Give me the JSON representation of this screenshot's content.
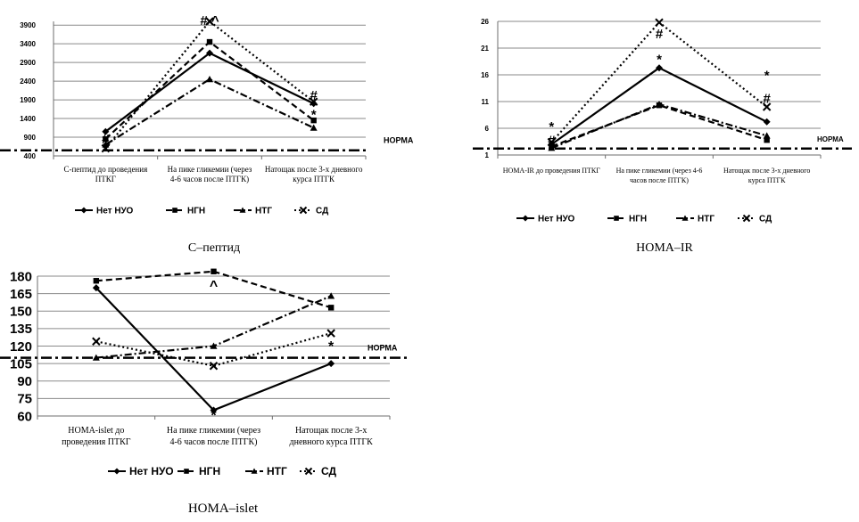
{
  "chart_data": [
    {
      "type": "line",
      "title": "С–пептид",
      "categories": [
        "С-пептид до проведения ПТКГ",
        "На пике гликемии (через 4-6 часов после ПТГК)",
        "Натощак после 3-х дневного курса ПТГК"
      ],
      "yticks": [
        "400",
        "900",
        "1400",
        "1900",
        "2400",
        "2900",
        "3400",
        "3900"
      ],
      "ylim": [
        400,
        4000
      ],
      "reference": {
        "label": "НОРМА",
        "value": 550
      },
      "series": [
        {
          "name": "Нет НУО",
          "values": [
            1050,
            3150,
            1800
          ],
          "color": "#000000",
          "dash": "",
          "marker": "diamond"
        },
        {
          "name": "НГН",
          "values": [
            850,
            3450,
            1350
          ],
          "color": "#000000",
          "dash": "7,4",
          "marker": "square"
        },
        {
          "name": "НТГ",
          "values": [
            700,
            2450,
            1150
          ],
          "color": "#000000",
          "dash": "8,3,2,3",
          "marker": "triangle"
        },
        {
          "name": "СД",
          "values": [
            600,
            4000,
            1850
          ],
          "color": "#000000",
          "dash": "2,3",
          "marker": "x"
        }
      ],
      "annotations": [
        {
          "text": "#",
          "x": 0,
          "y": 860
        },
        {
          "text": "*",
          "x": 0,
          "y": 640
        },
        {
          "text": "# ^",
          "x": 1,
          "y": 4030
        },
        {
          "text": "#",
          "x": 2,
          "y": 2030
        },
        {
          "text": "*",
          "x": 2,
          "y": 1520
        }
      ]
    },
    {
      "type": "line",
      "title": "HOMA–IR",
      "categories": [
        "HOMA-IR до проведения ПТКГ",
        "На пике гликемии (через 4-6 часов после ПТГК)",
        "Натощак после 3-х дневного курса ПТГК"
      ],
      "yticks": [
        "1",
        "6",
        "11",
        "16",
        "21",
        "26"
      ],
      "ylim": [
        1,
        26
      ],
      "reference": {
        "label": "НОРМА",
        "value": 2.2
      },
      "series": [
        {
          "name": "Нет НУО",
          "values": [
            3.0,
            17.3,
            7.2
          ],
          "color": "#000000",
          "dash": "",
          "marker": "diamond"
        },
        {
          "name": "НГН",
          "values": [
            2.6,
            10.3,
            3.8
          ],
          "color": "#000000",
          "dash": "7,4",
          "marker": "square"
        },
        {
          "name": "НТГ",
          "values": [
            2.3,
            10.5,
            4.6
          ],
          "color": "#000000",
          "dash": "8,3,2,3",
          "marker": "triangle"
        },
        {
          "name": "СД",
          "values": [
            3.4,
            25.8,
            10.0
          ],
          "color": "#000000",
          "dash": "2,3",
          "marker": "x"
        }
      ],
      "annotations": [
        {
          "text": "*",
          "x": 0,
          "y": 6.4
        },
        {
          "text": "#",
          "x": 0,
          "y": 3.8
        },
        {
          "text": "*",
          "x": 1,
          "y": 19.0
        },
        {
          "text": "#",
          "x": 1,
          "y": 23.7
        },
        {
          "text": "*",
          "x": 2,
          "y": 16.0
        },
        {
          "text": "#",
          "x": 2,
          "y": 11.6
        }
      ]
    },
    {
      "type": "line",
      "title": "HOMA–islet",
      "categories": [
        "HOMA-islet до проведения ПТКГ",
        "На пике гликемии (через 4-6 часов после ПТГК)",
        "Натощак после 3-х дневного курса ПТГК"
      ],
      "yticks": [
        "60",
        "75",
        "90",
        "105",
        "120",
        "135",
        "150",
        "165",
        "180"
      ],
      "ylim": [
        60,
        180
      ],
      "reference": {
        "label": "НОРМА",
        "value": 110
      },
      "series": [
        {
          "name": "Нет НУО",
          "values": [
            170,
            65,
            105
          ],
          "color": "#000000",
          "dash": "",
          "marker": "diamond"
        },
        {
          "name": "НГН",
          "values": [
            176,
            184,
            153
          ],
          "color": "#000000",
          "dash": "7,4",
          "marker": "square"
        },
        {
          "name": "НТГ",
          "values": [
            110,
            120,
            163
          ],
          "color": "#000000",
          "dash": "8,3,2,3",
          "marker": "triangle"
        },
        {
          "name": "СД",
          "values": [
            124,
            103,
            131
          ],
          "color": "#000000",
          "dash": "2,3",
          "marker": "x"
        }
      ],
      "annotations": [
        {
          "text": "^",
          "x": 1,
          "y": 172
        },
        {
          "text": "*",
          "x": 1,
          "y": 61
        },
        {
          "text": "*",
          "x": 2,
          "y": 120
        }
      ]
    }
  ]
}
